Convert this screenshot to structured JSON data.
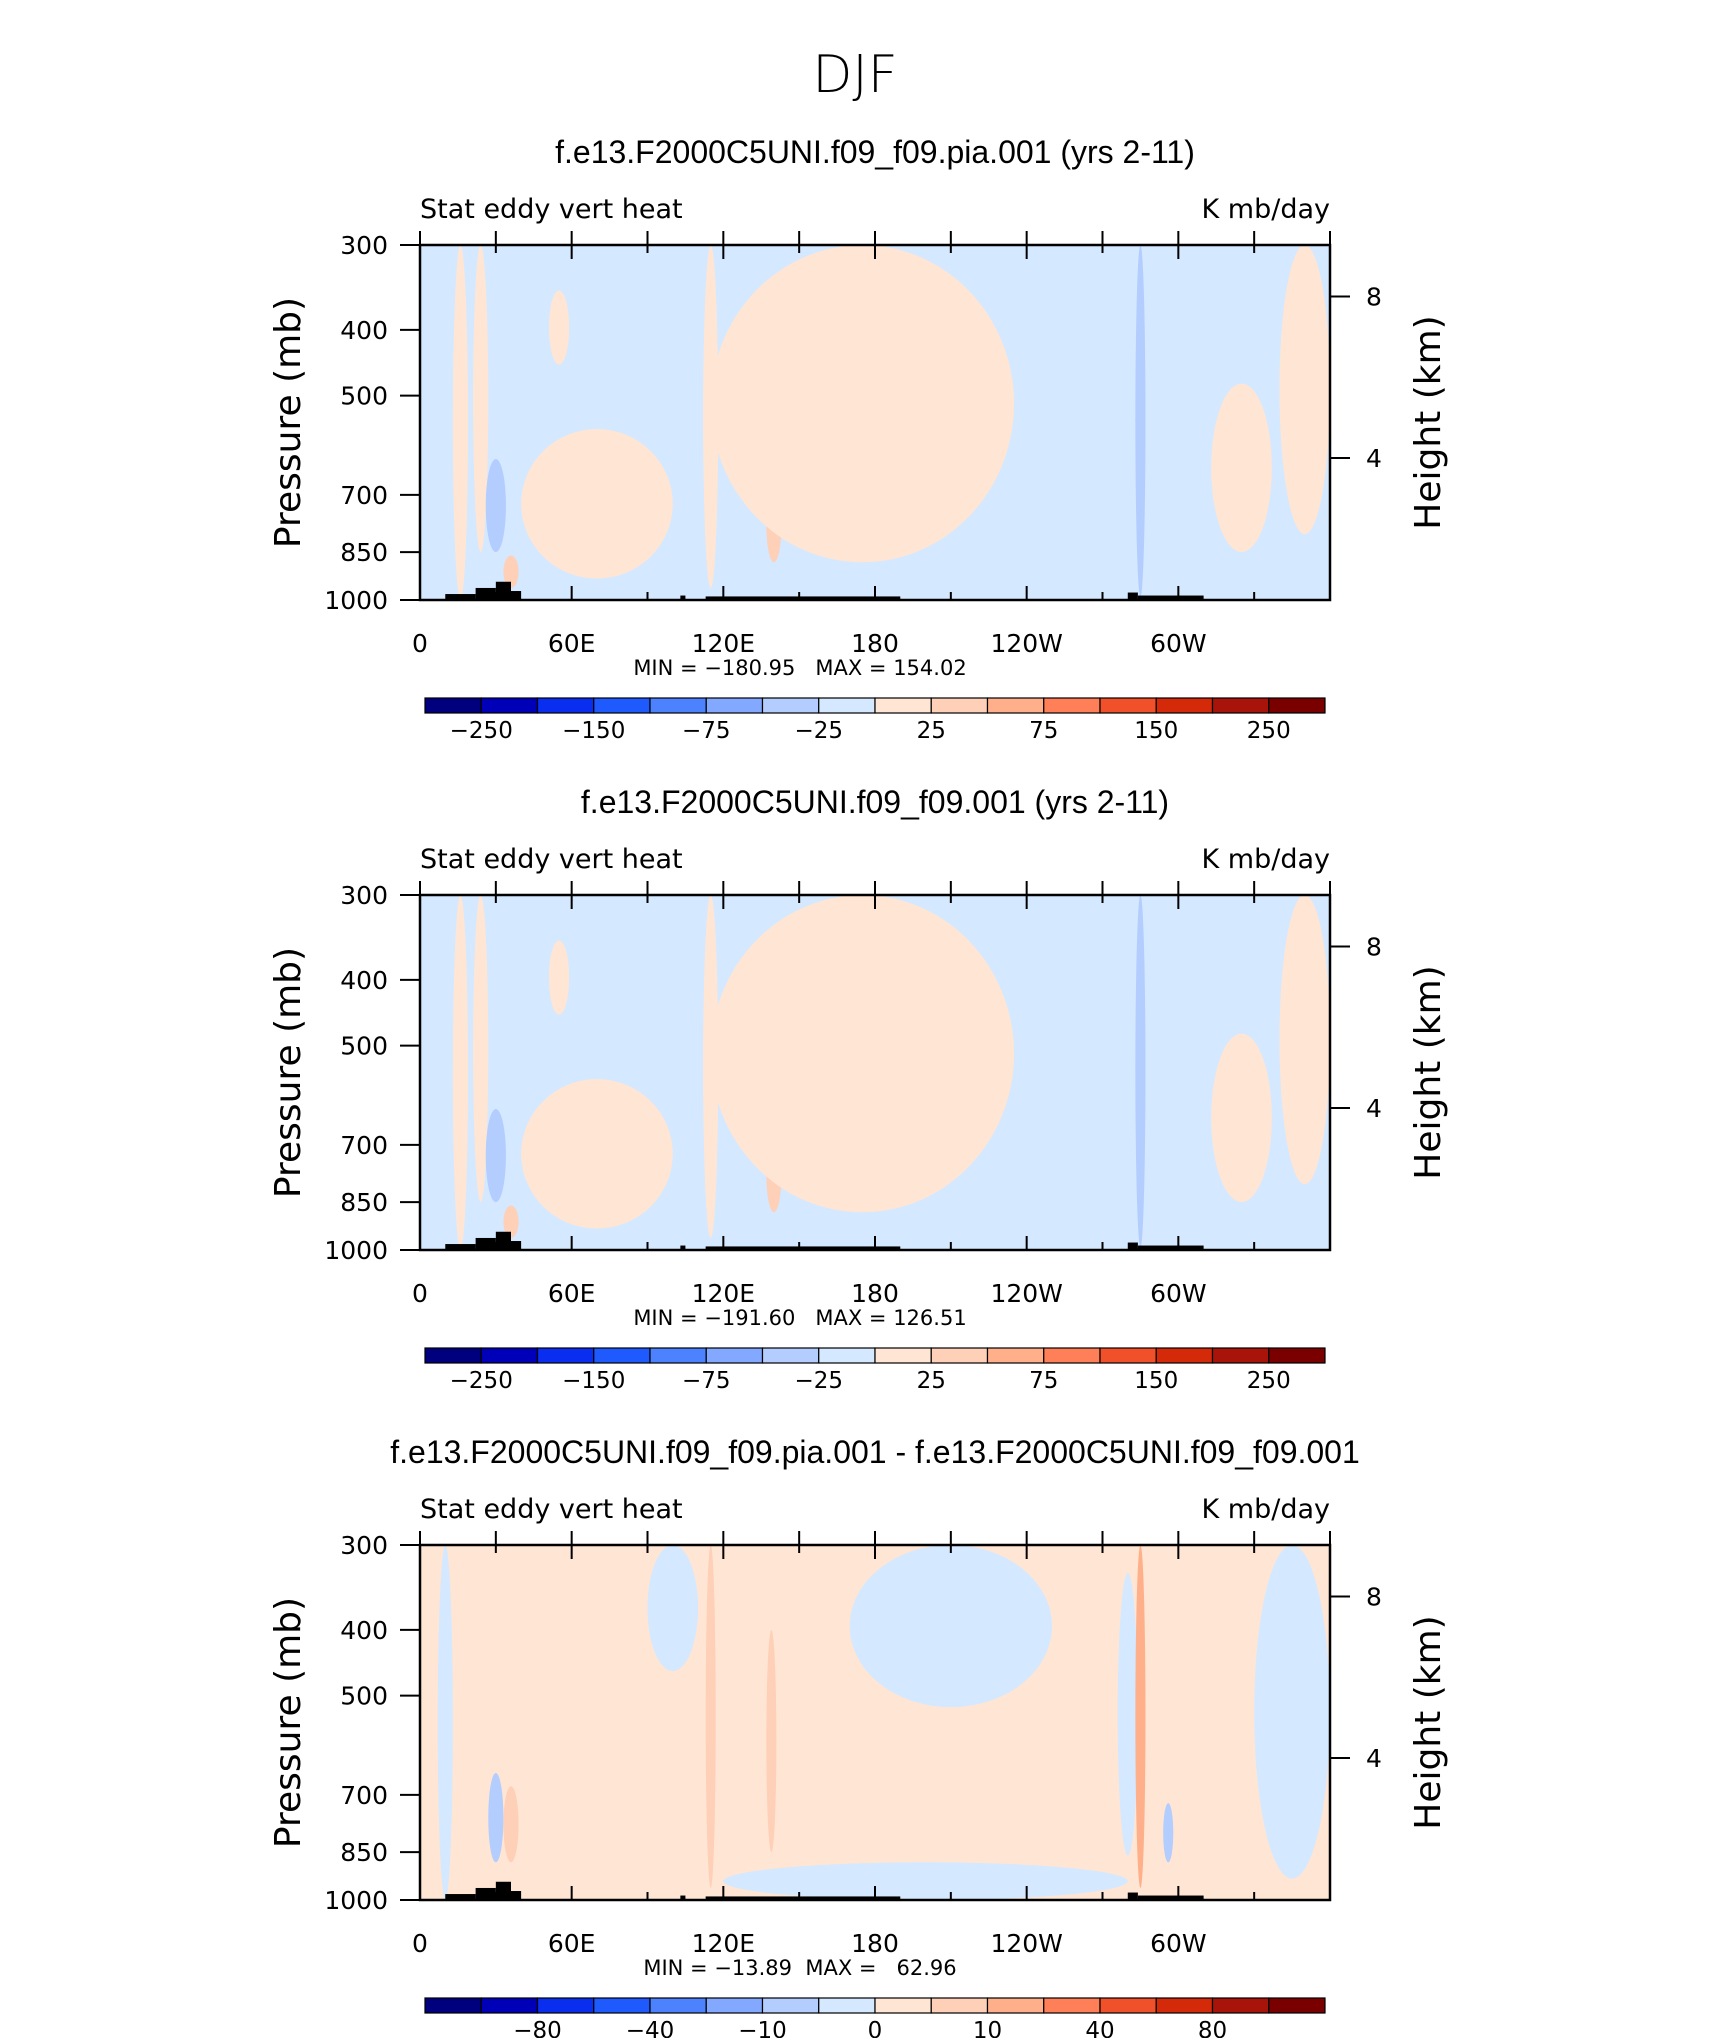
{
  "figure_title": "DJF",
  "chart_data": [
    {
      "type": "heatmap",
      "title": "f.e13.F2000C5UNI.f09_f09.pia.001 (yrs 2-11)",
      "left_label": "Stat eddy vert heat",
      "right_label": "K mb/day",
      "ylabel": "Pressure (mb)",
      "ylabel_right": "Height (km)",
      "xlabel": "",
      "x_ticks": [
        "0",
        "60E",
        "120E",
        "180",
        "120W",
        "60W"
      ],
      "y_ticks": [
        "300",
        "400",
        "500",
        "700",
        "850",
        "1000"
      ],
      "y_right_ticks": [
        "8",
        "4"
      ],
      "xlim": [
        0,
        360
      ],
      "ylim": [
        1000,
        300
      ],
      "stats": "MIN = −180.95   MAX = 154.02",
      "colorbar_labels": [
        "−250",
        "−150",
        "−75",
        "−25",
        "25",
        "75",
        "150",
        "250"
      ],
      "colorbar_colors": [
        "#00007f",
        "#0000b8",
        "#0a2ef0",
        "#1f5aff",
        "#4d82ff",
        "#82a8ff",
        "#b4cdff",
        "#d4e8ff",
        "#ffe6d4",
        "#ffd0b8",
        "#ffb08a",
        "#ff8058",
        "#f0502a",
        "#d42a0a",
        "#a8140a",
        "#7a0000"
      ],
      "field": {
        "ambient": 0,
        "anomaly_bias": 0,
        "amp": 1
      },
      "blobs": [
        {
          "lon": 16,
          "width": 3,
          "p_top": 300,
          "p_bot": 1000,
          "val": 1
        },
        {
          "lon": 24,
          "width": 3,
          "p_top": 300,
          "p_bot": 850,
          "val": 1
        },
        {
          "lon": 30,
          "width": 4,
          "p_top": 620,
          "p_bot": 850,
          "val": -2
        },
        {
          "lon": 36,
          "width": 3,
          "p_top": 860,
          "p_bot": 960,
          "val": 2
        },
        {
          "lon": 55,
          "width": 4,
          "p_top": 350,
          "p_bot": 450,
          "val": 1
        },
        {
          "lon": 70,
          "width": 30,
          "p_top": 560,
          "p_bot": 930,
          "val": 1
        },
        {
          "lon": 115,
          "width": 3,
          "p_top": 300,
          "p_bot": 960,
          "val": 1
        },
        {
          "lon": 140,
          "width": 3,
          "p_top": 680,
          "p_bot": 880,
          "val": 2
        },
        {
          "lon": 175,
          "width": 60,
          "p_top": 300,
          "p_bot": 880,
          "val": 1
        },
        {
          "lon": 285,
          "width": 2,
          "p_top": 300,
          "p_bot": 990,
          "val": -2
        },
        {
          "lon": 290,
          "width": 3,
          "p_top": 500,
          "p_bot": 880,
          "val": -1
        },
        {
          "lon": 300,
          "width": 2,
          "p_top": 600,
          "p_bot": 900,
          "val": -1
        },
        {
          "lon": 325,
          "width": 12,
          "p_top": 480,
          "p_bot": 850,
          "val": 1
        },
        {
          "lon": 350,
          "width": 10,
          "p_top": 300,
          "p_bot": 800,
          "val": 1
        }
      ]
    },
    {
      "type": "heatmap",
      "title": "f.e13.F2000C5UNI.f09_f09.001 (yrs 2-11)",
      "left_label": "Stat eddy vert heat",
      "right_label": "K mb/day",
      "ylabel": "Pressure (mb)",
      "ylabel_right": "Height (km)",
      "xlabel": "",
      "x_ticks": [
        "0",
        "60E",
        "120E",
        "180",
        "120W",
        "60W"
      ],
      "y_ticks": [
        "300",
        "400",
        "500",
        "700",
        "850",
        "1000"
      ],
      "y_right_ticks": [
        "8",
        "4"
      ],
      "xlim": [
        0,
        360
      ],
      "ylim": [
        1000,
        300
      ],
      "stats": "MIN = −191.60   MAX = 126.51",
      "colorbar_labels": [
        "−250",
        "−150",
        "−75",
        "−25",
        "25",
        "75",
        "150",
        "250"
      ],
      "colorbar_colors": [
        "#00007f",
        "#0000b8",
        "#0a2ef0",
        "#1f5aff",
        "#4d82ff",
        "#82a8ff",
        "#b4cdff",
        "#d4e8ff",
        "#ffe6d4",
        "#ffd0b8",
        "#ffb08a",
        "#ff8058",
        "#f0502a",
        "#d42a0a",
        "#a8140a",
        "#7a0000"
      ],
      "field": {
        "ambient": 0,
        "anomaly_bias": 0,
        "amp": 1
      },
      "blobs": [
        {
          "lon": 16,
          "width": 3,
          "p_top": 300,
          "p_bot": 1000,
          "val": 1
        },
        {
          "lon": 24,
          "width": 3,
          "p_top": 300,
          "p_bot": 850,
          "val": 1
        },
        {
          "lon": 30,
          "width": 4,
          "p_top": 620,
          "p_bot": 850,
          "val": -2
        },
        {
          "lon": 36,
          "width": 3,
          "p_top": 860,
          "p_bot": 960,
          "val": 2
        },
        {
          "lon": 55,
          "width": 4,
          "p_top": 350,
          "p_bot": 450,
          "val": 1
        },
        {
          "lon": 70,
          "width": 30,
          "p_top": 560,
          "p_bot": 930,
          "val": 1
        },
        {
          "lon": 115,
          "width": 3,
          "p_top": 300,
          "p_bot": 960,
          "val": 1
        },
        {
          "lon": 140,
          "width": 3,
          "p_top": 680,
          "p_bot": 880,
          "val": 2
        },
        {
          "lon": 175,
          "width": 60,
          "p_top": 300,
          "p_bot": 880,
          "val": 1
        },
        {
          "lon": 285,
          "width": 2,
          "p_top": 300,
          "p_bot": 990,
          "val": -2
        },
        {
          "lon": 290,
          "width": 3,
          "p_top": 500,
          "p_bot": 880,
          "val": -1
        },
        {
          "lon": 300,
          "width": 2,
          "p_top": 600,
          "p_bot": 900,
          "val": -1
        },
        {
          "lon": 325,
          "width": 12,
          "p_top": 480,
          "p_bot": 850,
          "val": 1
        },
        {
          "lon": 350,
          "width": 10,
          "p_top": 300,
          "p_bot": 800,
          "val": 1
        }
      ]
    },
    {
      "type": "heatmap",
      "title": "f.e13.F2000C5UNI.f09_f09.pia.001 - f.e13.F2000C5UNI.f09_f09.001",
      "left_label": "Stat eddy vert heat",
      "right_label": "K mb/day",
      "ylabel": "Pressure (mb)",
      "ylabel_right": "Height (km)",
      "xlabel": "",
      "x_ticks": [
        "0",
        "60E",
        "120E",
        "180",
        "120W",
        "60W"
      ],
      "y_ticks": [
        "300",
        "400",
        "500",
        "700",
        "850",
        "1000"
      ],
      "y_right_ticks": [
        "8",
        "4"
      ],
      "xlim": [
        0,
        360
      ],
      "ylim": [
        1000,
        300
      ],
      "stats": "MIN = −13.89  MAX =   62.96",
      "colorbar_labels": [
        "−80",
        "−40",
        "−10",
        "0",
        "10",
        "40",
        "80"
      ],
      "colorbar_colors": [
        "#00007f",
        "#0000b8",
        "#0a2ef0",
        "#1f5aff",
        "#4d82ff",
        "#82a8ff",
        "#b4cdff",
        "#d4e8ff",
        "#ffe6d4",
        "#ffd0b8",
        "#ffb08a",
        "#ff8058",
        "#f0502a",
        "#d42a0a",
        "#a8140a",
        "#7a0000"
      ],
      "field": {
        "ambient": 1,
        "anomaly_bias": 0,
        "amp": 1
      },
      "blobs": [
        {
          "lon": 10,
          "width": 3,
          "p_top": 300,
          "p_bot": 1000,
          "val": -1
        },
        {
          "lon": 30,
          "width": 3,
          "p_top": 650,
          "p_bot": 880,
          "val": -2
        },
        {
          "lon": 36,
          "width": 3,
          "p_top": 680,
          "p_bot": 880,
          "val": 2
        },
        {
          "lon": 100,
          "width": 10,
          "p_top": 300,
          "p_bot": 460,
          "val": -1
        },
        {
          "lon": 115,
          "width": 2,
          "p_top": 300,
          "p_bot": 960,
          "val": 2
        },
        {
          "lon": 139,
          "width": 2,
          "p_top": 400,
          "p_bot": 850,
          "val": 2
        },
        {
          "lon": 210,
          "width": 40,
          "p_top": 300,
          "p_bot": 520,
          "val": -1
        },
        {
          "lon": 280,
          "width": 4,
          "p_top": 330,
          "p_bot": 860,
          "val": -1
        },
        {
          "lon": 285,
          "width": 2,
          "p_top": 300,
          "p_bot": 960,
          "val": 3
        },
        {
          "lon": 296,
          "width": 2,
          "p_top": 720,
          "p_bot": 880,
          "val": -2
        },
        {
          "lon": 345,
          "width": 15,
          "p_top": 300,
          "p_bot": 930,
          "val": -1
        },
        {
          "lon": 200,
          "width": 80,
          "p_top": 880,
          "p_bot": 1000,
          "val": -1
        }
      ]
    }
  ]
}
